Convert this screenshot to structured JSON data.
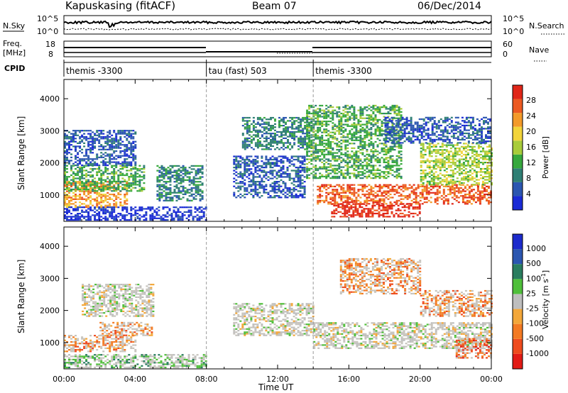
{
  "header": {
    "station": "Kapuskasing (fitACF)",
    "beam": "Beam 07",
    "date": "06/Dec/2014"
  },
  "strips": {
    "nsky_label": "N.Sky",
    "nsearch_label": "N.Search",
    "freq_label_line1": "Freq.",
    "freq_label_line2": "[MHz]",
    "nave_label": "Nave",
    "cpid_label": "CPID",
    "noise_left_ticks": [
      "10^5",
      "10^0"
    ],
    "noise_right_ticks": [
      "10^5",
      "10^0"
    ],
    "freq_ticks": [
      "18",
      "8"
    ],
    "nave_ticks": [
      "60",
      "0"
    ]
  },
  "cpid_segments": [
    {
      "label": "themis -3300",
      "start_hour": 0,
      "end_hour": 8
    },
    {
      "label": "tau (fast) 503",
      "start_hour": 8,
      "end_hour": 14
    },
    {
      "label": "themis -3300",
      "start_hour": 14,
      "end_hour": 24
    }
  ],
  "colors": {
    "power": [
      "#1a2bd6",
      "#2b56b0",
      "#2f7f74",
      "#36a83d",
      "#a8cc3a",
      "#f2d43a",
      "#f39a2a",
      "#ec5a22",
      "#e02618"
    ],
    "velocity": [
      "#1c2bcc",
      "#2b56b0",
      "#2a7d5f",
      "#4fbf3a",
      "#bebebe",
      "#f3a73a",
      "#f37a23",
      "#ee4b1e",
      "#e21b16"
    ],
    "scatter_grey": "#c7c4bd"
  },
  "chart_data": [
    {
      "type": "heatmap",
      "name": "power",
      "xlabel": "",
      "ylabel": "Slant Range [km]",
      "xlim": [
        0,
        24
      ],
      "ylim": [
        180,
        4600
      ],
      "yticks": [
        "4000",
        "3000",
        "2000",
        "1000"
      ],
      "ytick_values": [
        4000,
        3000,
        2000,
        1000
      ],
      "colorbar_label": "Power [dB]",
      "colorbar_ticks": [
        "28",
        "24",
        "20",
        "16",
        "12",
        "8",
        "4"
      ],
      "colorbar_range": [
        0,
        30
      ],
      "grid": false,
      "regions": [
        {
          "t": [
            0.0,
            3.5
          ],
          "r": [
            600,
            1400
          ],
          "level": 6
        },
        {
          "t": [
            0.0,
            4.5
          ],
          "r": [
            1100,
            1900
          ],
          "level": 3
        },
        {
          "t": [
            0.0,
            4.0
          ],
          "r": [
            1900,
            3000
          ],
          "level": 1
        },
        {
          "t": [
            5.2,
            7.8
          ],
          "r": [
            800,
            1900
          ],
          "level": 2
        },
        {
          "t": [
            0.0,
            8.0
          ],
          "r": [
            200,
            600
          ],
          "level": 0
        },
        {
          "t": [
            9.5,
            13.5
          ],
          "r": [
            900,
            2200
          ],
          "level": 1
        },
        {
          "t": [
            10.0,
            14.0
          ],
          "r": [
            2400,
            3400
          ],
          "level": 2
        },
        {
          "t": [
            13.6,
            19.0
          ],
          "r": [
            1500,
            3800
          ],
          "level": 3
        },
        {
          "t": [
            14.2,
            24.0
          ],
          "r": [
            700,
            1300
          ],
          "level": 7
        },
        {
          "t": [
            15.0,
            20.0
          ],
          "r": [
            300,
            700
          ],
          "level": 8
        },
        {
          "t": [
            20.0,
            24.0
          ],
          "r": [
            1300,
            2600
          ],
          "level": 4
        },
        {
          "t": [
            18.0,
            24.0
          ],
          "r": [
            2600,
            3400
          ],
          "level": 1
        }
      ]
    },
    {
      "type": "heatmap",
      "name": "velocity",
      "xlabel": "Time UT",
      "ylabel": "Slant Range [km]",
      "xlim": [
        0,
        24
      ],
      "ylim": [
        180,
        4600
      ],
      "xticks": [
        "00:00",
        "04:00",
        "08:00",
        "12:00",
        "16:00",
        "20:00",
        "00:00"
      ],
      "xtick_values": [
        0,
        4,
        8,
        12,
        16,
        20,
        24
      ],
      "yticks": [
        "4000",
        "3000",
        "2000",
        "1000"
      ],
      "ytick_values": [
        4000,
        3000,
        2000,
        1000
      ],
      "colorbar_label": "Velocity [m s^-1]",
      "colorbar_ticks": [
        "1000",
        "500",
        "100",
        "25",
        "-25",
        "-100",
        "-500",
        "-1000"
      ],
      "grid": false,
      "regions": [
        {
          "t": [
            0.0,
            4.0
          ],
          "r": [
            700,
            1200
          ],
          "level": 6
        },
        {
          "t": [
            1.0,
            5.0
          ],
          "r": [
            1800,
            2800
          ],
          "level": 4
        },
        {
          "t": [
            2.0,
            5.0
          ],
          "r": [
            1200,
            1600
          ],
          "level": 6
        },
        {
          "t": [
            0.0,
            8.0
          ],
          "r": [
            200,
            600
          ],
          "level": 3
        },
        {
          "t": [
            9.5,
            14.0
          ],
          "r": [
            1200,
            2200
          ],
          "level": 4
        },
        {
          "t": [
            14.0,
            24.0
          ],
          "r": [
            800,
            1600
          ],
          "level": 4
        },
        {
          "t": [
            15.5,
            20.0
          ],
          "r": [
            2500,
            3600
          ],
          "level": 6
        },
        {
          "t": [
            20.0,
            24.0
          ],
          "r": [
            1800,
            2600
          ],
          "level": 6
        },
        {
          "t": [
            22.0,
            24.0
          ],
          "r": [
            500,
            1100
          ],
          "level": 7
        }
      ]
    }
  ]
}
